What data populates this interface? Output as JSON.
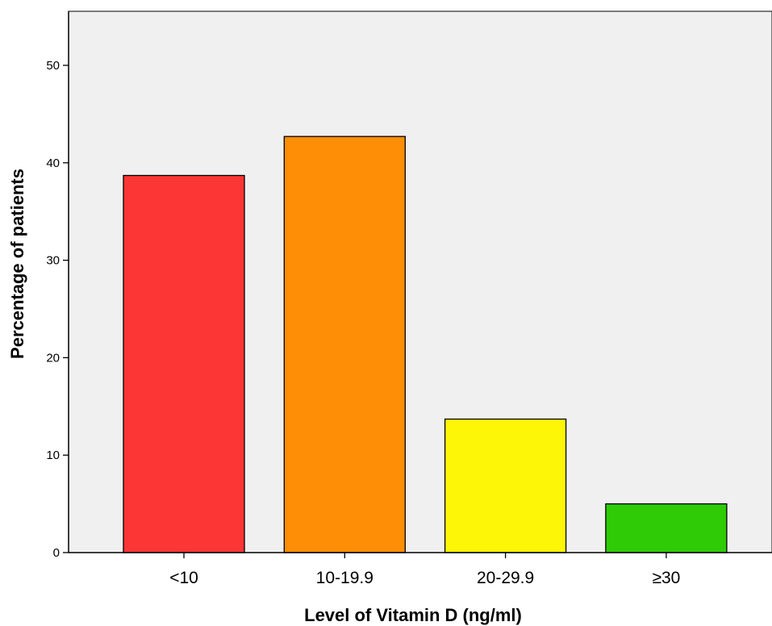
{
  "chart_data": {
    "type": "bar",
    "categories": [
      "<10",
      "10-19.9",
      "20-29.9",
      "≥30"
    ],
    "values": [
      38.7,
      42.7,
      13.7,
      5.0
    ],
    "colors": [
      "#fc3535",
      "#fd8e06",
      "#fdf606",
      "#2ecb06"
    ],
    "xlabel": "Level of Vitamin D (ng/ml)",
    "ylabel": "Percentage of patients",
    "ylim": [
      0,
      55
    ],
    "yticks": [
      0,
      10,
      20,
      30,
      40,
      50
    ],
    "plot_background": "#f0f0f0",
    "grid": false
  }
}
